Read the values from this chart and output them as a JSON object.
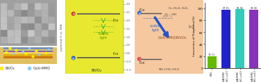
{
  "bar_values": [
    19.72,
    97.81,
    98.56,
    98.06
  ],
  "bar_colors": [
    "#66bb00",
    "#2222cc",
    "#33ccbb",
    "#8833bb"
  ],
  "bar_value_labels": [
    "19.72",
    "97.81",
    "98.56",
    "98.06"
  ],
  "ylabel": "Conversion of Thiophene(%)",
  "ylim": [
    0,
    110
  ],
  "yticks": [
    0,
    20,
    40,
    60,
    80,
    100
  ],
  "bar_width": 0.65,
  "figure_bg": "#ffffff",
  "sem_color": "#999999",
  "struct_color": "#ddaa33",
  "yellow_panel": "#e8e830",
  "salmon_panel": "#f5c8a0",
  "axis_label_color": "#555555",
  "band_line_color": "#888888",
  "text_color": "#333333",
  "green_text": "#559900",
  "blue_text": "#3366bb",
  "xlabels": [
    "BiVO₄",
    "CoAl-MMO/\nBiVO₄, x=0.5",
    "CoAl-MMO/\nBiVO₄, x=0.5",
    "CoAl-MMO/\nBiVO₄, x=0.5"
  ]
}
